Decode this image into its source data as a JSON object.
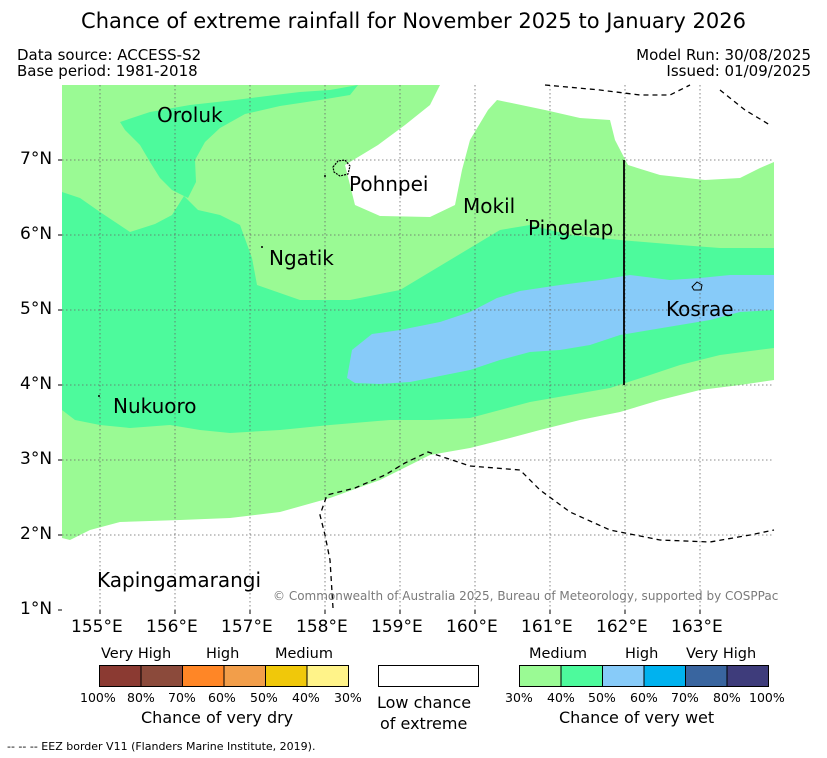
{
  "title": "Chance of extreme rainfall for November 2025 to January 2026",
  "meta": {
    "data_source": "Data source: ACCESS-S2",
    "base_period": "Base period: 1981-2018",
    "model_run": "Model Run: 30/08/2025",
    "issued": "Issued: 01/09/2025"
  },
  "map": {
    "lon_range": [
      154.5,
      164.0
    ],
    "lat_range": [
      0.97,
      7.97
    ],
    "lon_ticks": [
      "155°E",
      "156°E",
      "157°E",
      "158°E",
      "159°E",
      "160°E",
      "161°E",
      "162°E",
      "163°E"
    ],
    "lat_ticks": [
      "1°N",
      "2°N",
      "3°N",
      "4°N",
      "5°N",
      "6°N",
      "7°N"
    ],
    "places": [
      "Oroluk",
      "Pohnpei",
      "Mokil",
      "Pingelap",
      "Ngatik",
      "Kosrae",
      "Nukuoro",
      "Kapingamarangi"
    ],
    "copyright": "© Commonwealth of Australia 2025, Bureau of Meteorology, supported by COSPPac",
    "colors": {
      "wet_medium": "#9afa94",
      "wet_medium_high": "#4dfa9c",
      "wet_high": "#87cbf9",
      "low": "#ffffff"
    }
  },
  "legend_dry": {
    "labels": [
      "Very High",
      "High",
      "Medium"
    ],
    "colors": [
      "#8b3a32",
      "#8b4a3b",
      "#ff8626",
      "#f29e4a",
      "#f0c80a",
      "#fff389"
    ],
    "percents": [
      "100%",
      "80%",
      "70%",
      "60%",
      "50%",
      "40%",
      "30%"
    ],
    "caption": "Chance of very dry"
  },
  "legend_low": {
    "caption_line1": "Low chance",
    "caption_line2": "of extreme",
    "color": "#ffffff"
  },
  "legend_wet": {
    "labels": [
      "Medium",
      "High",
      "Very High"
    ],
    "colors": [
      "#9afa94",
      "#4dfa9c",
      "#87cbf9",
      "#00b2ef",
      "#39659f",
      "#3e3c7b"
    ],
    "percents": [
      "30%",
      "40%",
      "50%",
      "60%",
      "70%",
      "80%",
      "100%"
    ],
    "caption": "Chance of very wet"
  },
  "footnote": "--  --  -- EEZ border V11 (Flanders Marine Institute, 2019)."
}
